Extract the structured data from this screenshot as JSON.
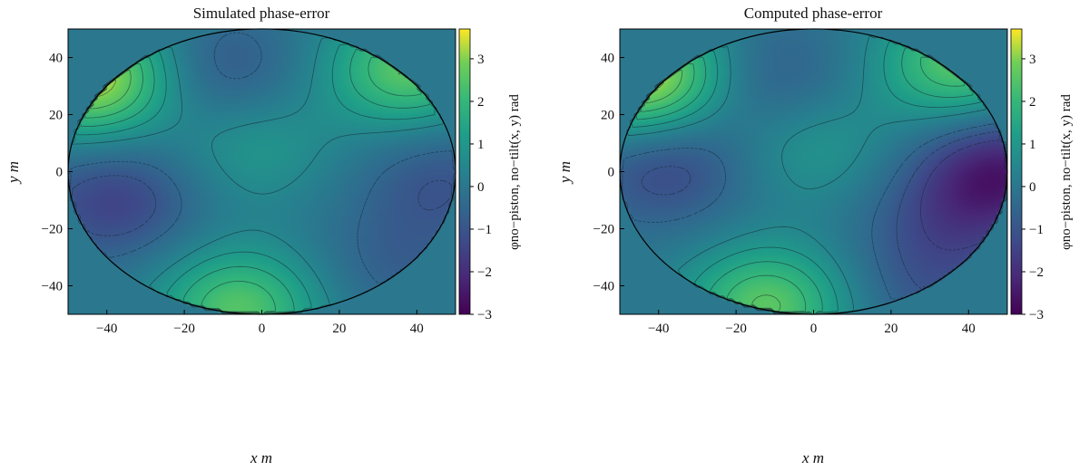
{
  "chart_data": [
    {
      "type": "heatmap",
      "title": "Simulated phase-error",
      "xlabel": "x m",
      "ylabel": "y m",
      "xlim": [
        -50,
        50
      ],
      "ylim": [
        -50,
        50
      ],
      "x_ticks": [
        -40,
        -20,
        0,
        20,
        40
      ],
      "y_ticks": [
        -40,
        -20,
        0,
        20,
        40
      ],
      "colorbar": {
        "label": "φno−piston, no−tilt(x, y) rad",
        "range": [
          -3,
          3.7
        ],
        "ticks": [
          3,
          2,
          1,
          0,
          -1,
          -2,
          -3
        ],
        "colormap": "viridis"
      },
      "aperture": {
        "shape": "circle",
        "center": [
          0,
          0
        ],
        "radius": 50
      },
      "background_value": 0,
      "features": [
        {
          "kind": "max",
          "x": -44,
          "y": 33,
          "value": 3.5
        },
        {
          "kind": "max",
          "x": 38,
          "y": 36,
          "value": 2.6
        },
        {
          "kind": "max",
          "x": -6,
          "y": -48,
          "value": 2.5
        },
        {
          "kind": "max",
          "x": -2,
          "y": 9,
          "value": 1.0
        },
        {
          "kind": "min",
          "x": -38,
          "y": -10,
          "value": -1.5
        },
        {
          "kind": "min",
          "x": -10,
          "y": 35,
          "value": -1.0
        },
        {
          "kind": "min",
          "x": 46,
          "y": -2,
          "value": -1.0
        },
        {
          "kind": "min",
          "x": 35,
          "y": -32,
          "value": -0.7
        }
      ]
    },
    {
      "type": "heatmap",
      "title": "Computed phase-error",
      "xlabel": "x m",
      "ylabel": "y m",
      "xlim": [
        -50,
        50
      ],
      "ylim": [
        -50,
        50
      ],
      "x_ticks": [
        -40,
        -20,
        0,
        20,
        40
      ],
      "y_ticks": [
        -40,
        -20,
        0,
        20,
        40
      ],
      "colorbar": {
        "label": "φno−piston, no−tilt(x, y) rad",
        "range": [
          -3,
          3.7
        ],
        "ticks": [
          3,
          2,
          1,
          0,
          -1,
          -2,
          -3
        ],
        "colormap": "viridis"
      },
      "aperture": {
        "shape": "circle",
        "center": [
          0,
          0
        ],
        "radius": 50
      },
      "background_value": 0,
      "features": [
        {
          "kind": "max",
          "x": -44,
          "y": 33,
          "value": 3.6
        },
        {
          "kind": "max",
          "x": 38,
          "y": 38,
          "value": 2.6
        },
        {
          "kind": "max",
          "x": -12,
          "y": -47,
          "value": 2.6
        },
        {
          "kind": "max",
          "x": 0,
          "y": 9,
          "value": 1.0
        },
        {
          "kind": "min",
          "x": -38,
          "y": 2,
          "value": -1.4
        },
        {
          "kind": "min",
          "x": -10,
          "y": 32,
          "value": -0.9
        },
        {
          "kind": "min",
          "x": 48,
          "y": 0,
          "value": -2.4
        },
        {
          "kind": "min",
          "x": 33,
          "y": -18,
          "value": -0.9
        },
        {
          "kind": "min",
          "x": 30,
          "y": -42,
          "value": -0.8
        }
      ]
    }
  ]
}
